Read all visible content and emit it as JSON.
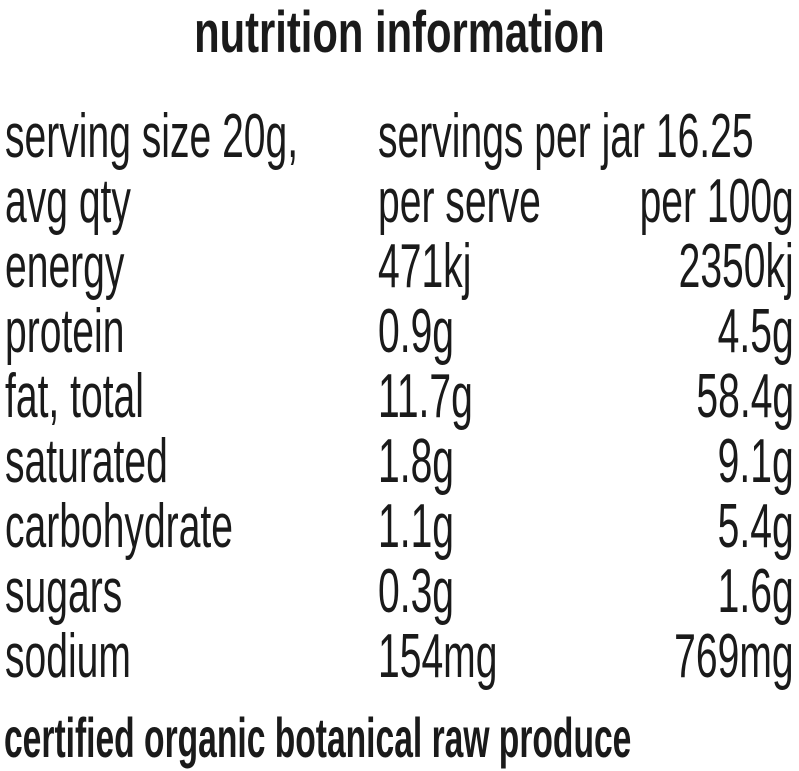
{
  "title": "nutrition information",
  "serving": {
    "size": "serving size 20g,",
    "per_container": "servings per jar 16.25"
  },
  "table": {
    "header": [
      "avg qty",
      "per serve",
      "per 100g"
    ],
    "rows": [
      [
        "energy",
        "471kj",
        "2350kj"
      ],
      [
        "protein",
        "0.9g",
        "4.5g"
      ],
      [
        "fat, total",
        "11.7g",
        "58.4g"
      ],
      [
        "saturated",
        "1.8g",
        "9.1g"
      ],
      [
        "carbohydrate",
        "1.1g",
        "5.4g"
      ],
      [
        "sugars",
        "0.3g",
        "1.6g"
      ],
      [
        "sodium",
        "154mg",
        "769mg"
      ]
    ]
  },
  "footer": "certified organic botanical raw produce"
}
